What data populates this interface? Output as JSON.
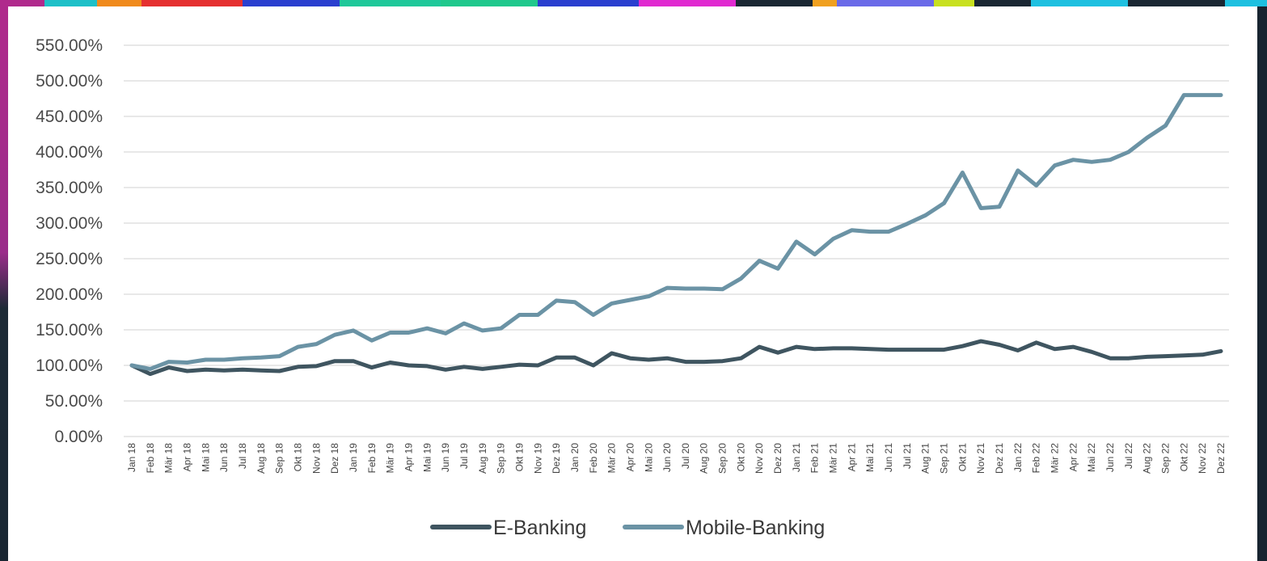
{
  "chart_data": {
    "type": "line",
    "title": "",
    "xlabel": "",
    "ylabel": "",
    "ylim": [
      0,
      550
    ],
    "yticks": [
      "0.00%",
      "50.00%",
      "100.00%",
      "150.00%",
      "200.00%",
      "250.00%",
      "300.00%",
      "350.00%",
      "400.00%",
      "450.00%",
      "500.00%",
      "550.00%"
    ],
    "grid": true,
    "legend_position": "bottom",
    "categories": [
      "Jan 18",
      "Feb 18",
      "Mär 18",
      "Apr 18",
      "Mai 18",
      "Jun 18",
      "Jul 18",
      "Aug 18",
      "Sep 18",
      "Okt 18",
      "Nov 18",
      "Dez 18",
      "Jan 19",
      "Feb 19",
      "Mär 19",
      "Apr 19",
      "Mai 19",
      "Jun 19",
      "Jul 19",
      "Aug 19",
      "Sep 19",
      "Okt 19",
      "Nov 19",
      "Dez 19",
      "Jan 20",
      "Feb 20",
      "Mär 20",
      "Apr 20",
      "Mai 20",
      "Jun 20",
      "Jul 20",
      "Aug 20",
      "Sep 20",
      "Okt 20",
      "Nov 20",
      "Dez 20",
      "Jan 21",
      "Feb 21",
      "Mär 21",
      "Apr 21",
      "Mai 21",
      "Jun 21",
      "Jul 21",
      "Aug 21",
      "Sep 21",
      "Okt 21",
      "Nov 21",
      "Dez 21",
      "Jan 22",
      "Feb 22",
      "Mär 22",
      "Apr 22",
      "Mai 22",
      "Jun 22",
      "Jul 22",
      "Aug 22",
      "Sep 22",
      "Okt 22",
      "Nov 22",
      "Dez 22"
    ],
    "series": [
      {
        "name": "E-Banking",
        "color": "#3f5560",
        "values": [
          100,
          88,
          97,
          92,
          94,
          93,
          94,
          93,
          92,
          98,
          99,
          106,
          106,
          97,
          104,
          100,
          99,
          94,
          98,
          95,
          98,
          101,
          100,
          111,
          111,
          100,
          117,
          110,
          108,
          110,
          105,
          105,
          106,
          110,
          126,
          118,
          126,
          123,
          124,
          124,
          123,
          122,
          122,
          122,
          122,
          127,
          134,
          129,
          121,
          132,
          123,
          126,
          119,
          110,
          110,
          112,
          113,
          114,
          115,
          120
        ]
      },
      {
        "name": "Mobile-Banking",
        "color": "#6b93a5",
        "values": [
          100,
          95,
          105,
          104,
          108,
          108,
          110,
          111,
          113,
          126,
          130,
          143,
          149,
          135,
          146,
          146,
          152,
          145,
          159,
          149,
          152,
          171,
          171,
          191,
          189,
          171,
          187,
          192,
          197,
          209,
          208,
          208,
          207,
          222,
          247,
          236,
          274,
          256,
          278,
          290,
          288,
          288,
          299,
          311,
          328,
          371,
          321,
          323,
          374,
          353,
          381,
          389,
          386,
          389,
          400,
          420,
          437,
          480,
          480,
          480
        ]
      }
    ]
  }
}
